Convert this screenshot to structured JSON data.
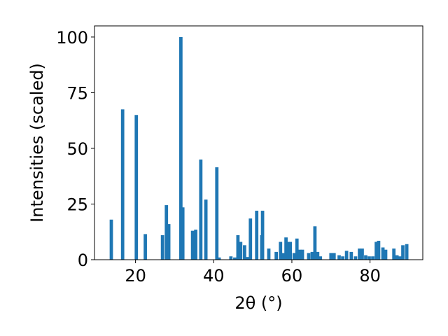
{
  "chart_data": {
    "type": "bar",
    "xlabel": "2θ (°)",
    "ylabel": "Intensities (scaled)",
    "xlim": [
      9.5,
      93.5
    ],
    "ylim": [
      0,
      105
    ],
    "xticks": [
      20,
      40,
      60,
      80
    ],
    "yticks": [
      0,
      25,
      50,
      75,
      100
    ],
    "bar_width": 0.85,
    "bar_color": "#1f77b4",
    "grid": false,
    "x": [
      13.8,
      16.7,
      20.2,
      22.5,
      26.9,
      27.9,
      28.5,
      31.6,
      32.1,
      34.6,
      35.4,
      36.7,
      38.0,
      40.8,
      41.4,
      44.4,
      45.4,
      46.2,
      46.9,
      47.9,
      48.7,
      49.4,
      51.0,
      52.3,
      52.5,
      54.1,
      56.0,
      57.1,
      57.9,
      58.5,
      59.1,
      59.6,
      60.6,
      61.3,
      62.0,
      62.7,
      64.3,
      65.2,
      65.9,
      66.6,
      67.3,
      70.0,
      70.8,
      72.1,
      73.0,
      74.0,
      75.2,
      76.3,
      77.3,
      78.0,
      78.9,
      79.8,
      80.7,
      81.6,
      82.2,
      83.3,
      84.0,
      86.1,
      86.9,
      87.7,
      88.4,
      89.4
    ],
    "values": [
      18,
      67.5,
      65,
      11.5,
      11,
      24.5,
      16,
      100,
      23.5,
      13,
      13.5,
      45,
      27,
      41.5,
      1,
      1.5,
      1,
      11,
      8,
      6.5,
      1.2,
      18.5,
      22,
      11,
      22,
      5,
      3.5,
      8,
      3,
      10,
      8,
      8,
      3,
      9.5,
      4.5,
      4.5,
      3,
      3.5,
      15,
      3.5,
      1.5,
      3,
      3,
      2,
      1.5,
      4,
      3.5,
      1.5,
      5,
      5,
      2,
      1.5,
      1.5,
      8,
      8.5,
      5.5,
      4.5,
      5,
      2,
      1.5,
      6.5,
      7
    ]
  }
}
